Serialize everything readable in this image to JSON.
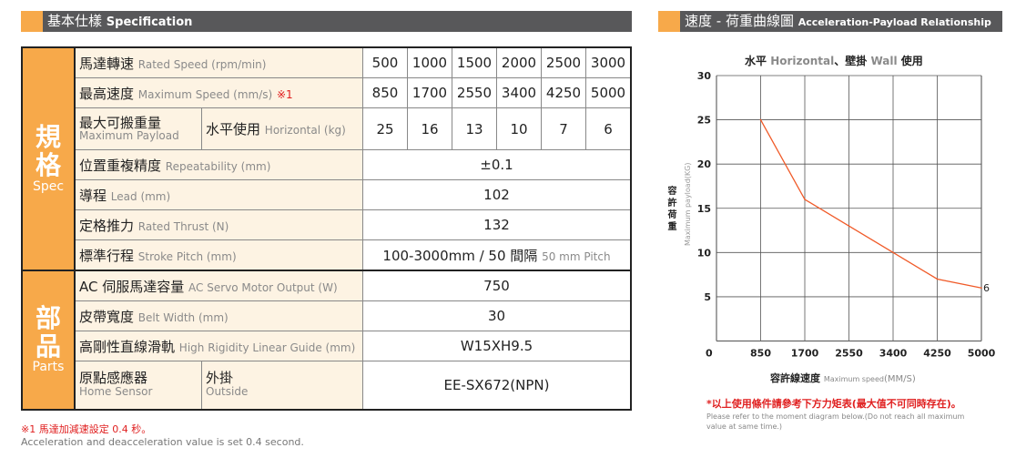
{
  "spec_header": {
    "zh": "基本仕樣",
    "en": "Specification"
  },
  "chart_header": {
    "zh": "速度 - 荷重曲線圖",
    "en": "Acceleration-Payload Relationship"
  },
  "spec": {
    "cat1": {
      "zh": "規格",
      "en": "Spec"
    },
    "cat2": {
      "zh": "部品",
      "en": "Parts"
    },
    "rated_speed": {
      "zh": "馬達轉速",
      "en": "Rated Speed (rpm/min)",
      "values": [
        "500",
        "1000",
        "1500",
        "2000",
        "2500",
        "3000"
      ]
    },
    "max_speed": {
      "zh": "最高速度",
      "en": "Maximum Speed (mm/s)",
      "mark": "※1",
      "values": [
        "850",
        "1700",
        "2550",
        "3400",
        "4250",
        "5000"
      ]
    },
    "payload": {
      "zh": "最大可搬重量",
      "en": "Maximum Payload",
      "sub_zh": "水平使用",
      "sub_en": "Horizontal (kg)",
      "values": [
        "25",
        "16",
        "13",
        "10",
        "7",
        "6"
      ]
    },
    "repeatability": {
      "zh": "位置重複精度",
      "en": "Repeatability (mm)",
      "value": "±0.1"
    },
    "lead": {
      "zh": "導程",
      "en": "Lead (mm)",
      "value": "102"
    },
    "thrust": {
      "zh": "定格推力",
      "en": "Rated Thrust (N)",
      "value": "132"
    },
    "stroke": {
      "zh": "標準行程",
      "en": "Stroke Pitch (mm)",
      "value": "100-3000mm / 50 間隔",
      "value_en": "50 mm Pitch"
    },
    "motor": {
      "zh": "AC 伺服馬達容量",
      "en": "AC Servo Motor Output (W)",
      "value": "750"
    },
    "belt": {
      "zh": "皮帶寬度",
      "en": "Belt Width (mm)",
      "value": "30"
    },
    "guide": {
      "zh": "高剛性直線滑軌",
      "en": "High Rigidity Linear Guide (mm)",
      "value": "W15XH9.5"
    },
    "sensor": {
      "zh": "原點感應器",
      "en": "Home Sensor",
      "sub_zh": "外掛",
      "sub_en": "Outside",
      "value": "EE-SX672(NPN)"
    }
  },
  "footnote": {
    "zh": "※1 馬達加減速設定 0.4 秒。",
    "en": "Acceleration and deacceleration value is set 0.4 second."
  },
  "chart_note": {
    "zh": "*以上使用條件請參考下方力矩表(最大值不可同時存在)。",
    "en1": "Please refer to the moment diagram below.(Do not reach all maximum",
    "en2": "value at same time.)"
  },
  "chart_data": {
    "type": "line",
    "title_parts": {
      "a": "水平",
      "b": "Horizontal",
      "c": "、壁掛",
      "d": "Wall",
      "e": "使用"
    },
    "xlabel_zh": "容許線速度",
    "xlabel_en": "Maximum speed",
    "xlabel_unit": "(MM/S)",
    "ylabel_zh": "容許荷重",
    "ylabel_en": "Maximum payload(KG)",
    "x_ticks": [
      "0",
      "850",
      "1700",
      "2550",
      "3400",
      "4250",
      "5000"
    ],
    "y_ticks": [
      "5",
      "10",
      "15",
      "20",
      "25",
      "30"
    ],
    "ylim": [
      0,
      30
    ],
    "grid": true,
    "color": "#f05a28",
    "series": [
      {
        "x": [
          850,
          1700,
          2550,
          3400,
          4250,
          5000
        ],
        "y": [
          25,
          16,
          13,
          10,
          7,
          6
        ]
      }
    ],
    "end_label": "6"
  }
}
